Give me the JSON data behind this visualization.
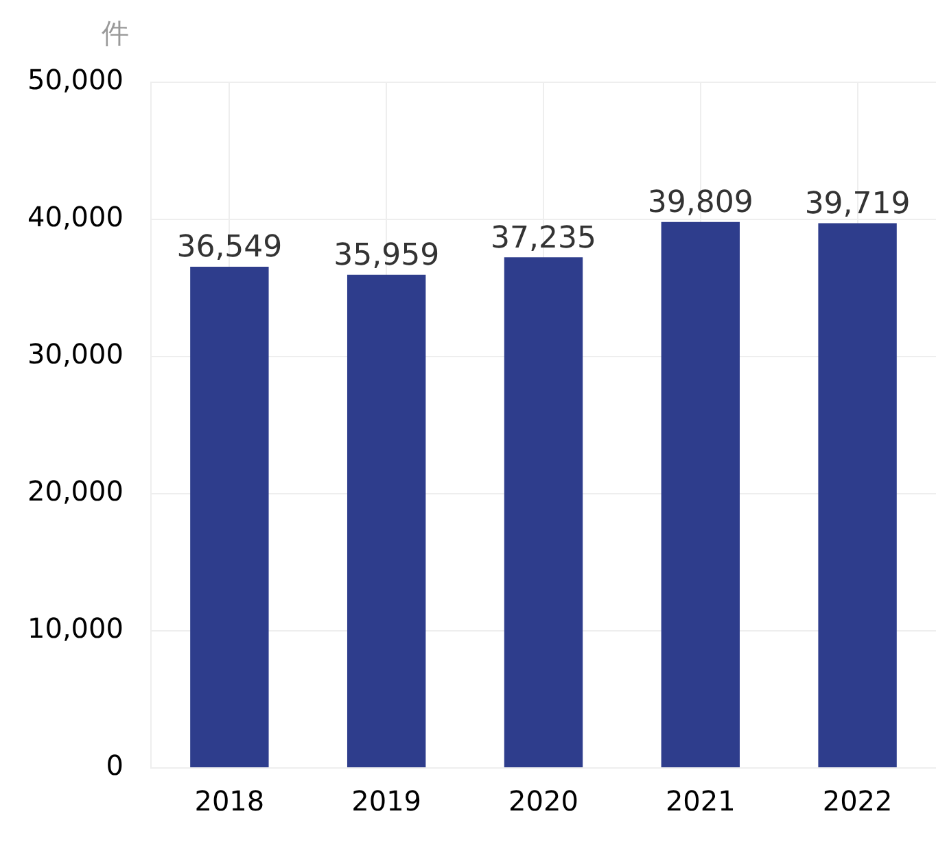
{
  "chart_data": {
    "type": "bar",
    "ylabel": "件",
    "categories": [
      "2018",
      "2019",
      "2020",
      "2021",
      "2022"
    ],
    "values": [
      36549,
      35959,
      37235,
      39809,
      39719
    ],
    "value_labels": [
      "36,549",
      "35,959",
      "37,235",
      "39,809",
      "39,719"
    ],
    "color": "#2e3d8c",
    "ylim": [
      0,
      50000
    ],
    "yticks": [
      {
        "value": 0,
        "label": "0"
      },
      {
        "value": 10000,
        "label": "10,000"
      },
      {
        "value": 20000,
        "label": "20,000"
      },
      {
        "value": 30000,
        "label": "30,000"
      },
      {
        "value": 40000,
        "label": "40,000"
      },
      {
        "value": 50000,
        "label": "50,000"
      }
    ],
    "grid": true,
    "legend": false
  }
}
